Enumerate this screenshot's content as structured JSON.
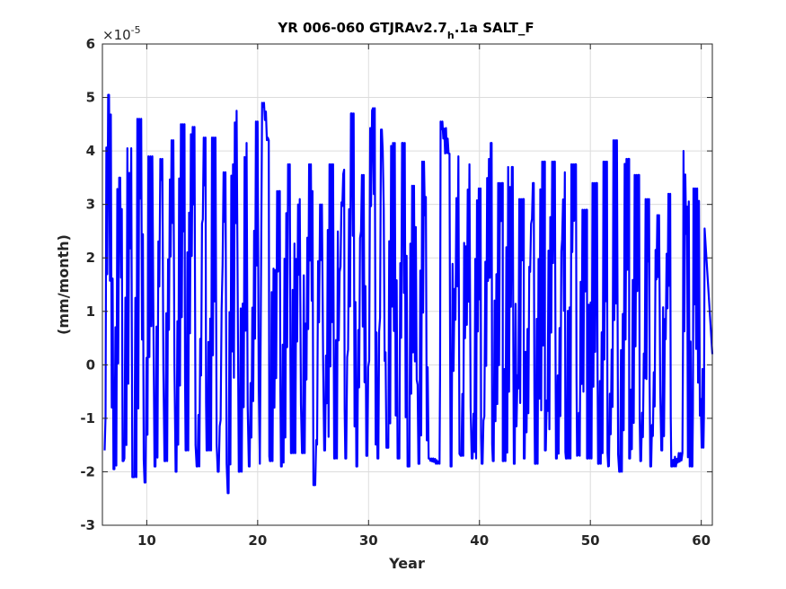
{
  "chart_data": {
    "type": "line",
    "title_main": "YR 006-060 GTJRAv2.7",
    "title_sub": "h",
    "title_tail": ".1a SALT_F",
    "xlabel": "Year",
    "ylabel": "(mm/month)",
    "y_exponent_base": "×10",
    "y_exponent_power": "-5",
    "xlim": [
      6,
      61
    ],
    "ylim": [
      -3,
      6
    ],
    "xticks": [
      10,
      20,
      30,
      40,
      50,
      60
    ],
    "yticks": [
      -3,
      -2,
      -1,
      0,
      1,
      2,
      3,
      4,
      5,
      6
    ],
    "grid": true,
    "line_color": "#0000ff",
    "series": [
      {
        "peaks": [
          [
            6.6,
            5.05
          ],
          [
            7.6,
            3.5
          ],
          [
            8.6,
            4.05
          ],
          [
            9.5,
            4.6
          ],
          [
            10.5,
            3.9
          ],
          [
            11.4,
            3.85
          ],
          [
            12.4,
            4.2
          ],
          [
            13.4,
            4.5
          ],
          [
            14.3,
            4.45
          ],
          [
            15.3,
            4.25
          ],
          [
            16.2,
            4.25
          ],
          [
            17.1,
            3.6
          ],
          [
            18.1,
            4.75
          ],
          [
            19.0,
            4.15
          ],
          [
            20.0,
            4.55
          ],
          [
            20.4,
            4.9
          ],
          [
            21.0,
            4.2
          ],
          [
            22.0,
            3.25
          ],
          [
            22.9,
            3.75
          ],
          [
            23.8,
            3.1
          ],
          [
            24.8,
            3.75
          ],
          [
            25.8,
            3.0
          ],
          [
            26.8,
            3.75
          ],
          [
            27.8,
            3.65
          ],
          [
            28.5,
            4.7
          ],
          [
            29.4,
            3.55
          ],
          [
            30.4,
            4.8
          ],
          [
            31.2,
            4.4
          ],
          [
            32.2,
            4.15
          ],
          [
            33.1,
            4.15
          ],
          [
            34.1,
            3.35
          ],
          [
            35.0,
            3.8
          ],
          [
            36.5,
            4.55
          ],
          [
            37.3,
            3.95
          ],
          [
            38.1,
            3.9
          ],
          [
            39.1,
            3.75
          ],
          [
            40.1,
            3.3
          ],
          [
            41.1,
            4.15
          ],
          [
            42.1,
            3.4
          ],
          [
            43.0,
            3.7
          ],
          [
            44.0,
            3.1
          ],
          [
            44.9,
            3.4
          ],
          [
            45.9,
            3.8
          ],
          [
            46.8,
            3.8
          ],
          [
            47.7,
            3.6
          ],
          [
            48.7,
            3.75
          ],
          [
            49.7,
            2.9
          ],
          [
            50.6,
            3.4
          ],
          [
            51.5,
            3.8
          ],
          [
            52.4,
            4.2
          ],
          [
            53.5,
            3.85
          ],
          [
            54.4,
            3.55
          ],
          [
            55.3,
            3.1
          ],
          [
            56.2,
            2.8
          ],
          [
            57.2,
            3.2
          ],
          [
            58.4,
            4.0
          ],
          [
            59.3,
            3.3
          ],
          [
            60.3,
            2.55
          ]
        ],
        "troughs": [
          [
            6.2,
            -1.6
          ],
          [
            7.0,
            -1.95
          ],
          [
            7.9,
            -1.8
          ],
          [
            8.8,
            -2.1
          ],
          [
            9.8,
            -2.2
          ],
          [
            10.7,
            -1.9
          ],
          [
            11.6,
            -1.8
          ],
          [
            12.6,
            -2.0
          ],
          [
            13.5,
            -1.6
          ],
          [
            14.5,
            -1.9
          ],
          [
            15.4,
            -1.6
          ],
          [
            16.4,
            -2.0
          ],
          [
            17.3,
            -2.4
          ],
          [
            18.3,
            -2.0
          ],
          [
            19.2,
            -1.9
          ],
          [
            20.2,
            -1.85
          ],
          [
            21.1,
            -1.8
          ],
          [
            22.1,
            -1.9
          ],
          [
            23.0,
            -1.65
          ],
          [
            24.0,
            -1.65
          ],
          [
            25.1,
            -2.25
          ],
          [
            26.0,
            -1.6
          ],
          [
            26.9,
            -1.75
          ],
          [
            27.9,
            -1.75
          ],
          [
            28.9,
            -1.9
          ],
          [
            29.8,
            -1.7
          ],
          [
            30.8,
            -1.75
          ],
          [
            31.7,
            -1.55
          ],
          [
            32.7,
            -1.75
          ],
          [
            33.6,
            -1.9
          ],
          [
            34.5,
            -1.85
          ],
          [
            35.5,
            -1.75
          ],
          [
            36.4,
            -1.85
          ],
          [
            37.4,
            -1.9
          ],
          [
            38.3,
            -1.7
          ],
          [
            39.3,
            -1.75
          ],
          [
            40.2,
            -1.85
          ],
          [
            41.2,
            -1.8
          ],
          [
            42.1,
            -1.8
          ],
          [
            43.1,
            -1.85
          ],
          [
            44.0,
            -1.75
          ],
          [
            45.0,
            -1.85
          ],
          [
            45.9,
            -1.6
          ],
          [
            46.9,
            -1.75
          ],
          [
            47.8,
            -1.75
          ],
          [
            48.8,
            -1.7
          ],
          [
            49.7,
            -1.75
          ],
          [
            50.7,
            -1.85
          ],
          [
            51.6,
            -1.9
          ],
          [
            52.6,
            -2.0
          ],
          [
            53.5,
            -1.75
          ],
          [
            54.5,
            -1.8
          ],
          [
            55.4,
            -1.9
          ],
          [
            56.4,
            -1.6
          ],
          [
            57.3,
            -1.9
          ],
          [
            58.3,
            -1.65
          ],
          [
            59.2,
            -1.9
          ],
          [
            60.2,
            -1.55
          ]
        ]
      }
    ]
  }
}
